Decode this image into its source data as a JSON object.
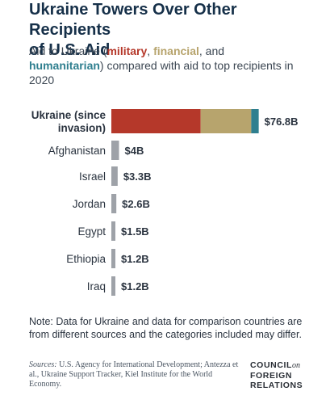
{
  "header": {
    "title_line1": "Ukraine Towers Over Other Recipients",
    "title_line2": "of U.S. Aid",
    "subtitle_pre": "Aid to Ukraine (",
    "subtitle_military": "military",
    "subtitle_sep1": ", ",
    "subtitle_financial": "financial",
    "subtitle_sep2": ", and",
    "subtitle_humanitarian": "humanitarian",
    "subtitle_post": ") compared with aid to top recipients in 2020"
  },
  "colors": {
    "military": "#b5382a",
    "financial": "#b7a46d",
    "humanitarian": "#2f7f8f",
    "other": "#9ea2a8"
  },
  "chart_data": {
    "type": "bar",
    "orientation": "horizontal",
    "unit": "B",
    "categories": [
      "Ukraine (since invasion)",
      "Afghanistan",
      "Israel",
      "Jordan",
      "Egypt",
      "Ethiopia",
      "Iraq"
    ],
    "category_lines": [
      [
        "Ukraine (since",
        "invasion)"
      ],
      [
        "Afghanistan"
      ],
      [
        "Israel"
      ],
      [
        "Jordan"
      ],
      [
        "Egypt"
      ],
      [
        "Ethiopia"
      ],
      [
        "Iraq"
      ]
    ],
    "totals": [
      76.8,
      4,
      3.3,
      2.6,
      1.5,
      1.2,
      1.2
    ],
    "value_labels": [
      "$76.8B",
      "$4B",
      "$3.3B",
      "$2.6B",
      "$1.5B",
      "$1.2B",
      "$1.2B"
    ],
    "ukraine_breakdown": [
      {
        "component": "military",
        "value": 46.6
      },
      {
        "component": "financial",
        "value": 26.4
      },
      {
        "component": "humanitarian",
        "value": 3.9
      }
    ],
    "xlim": [
      0,
      80
    ],
    "grid": false,
    "legend": "none"
  },
  "footer": {
    "note": "Note: Data for Ukraine and data for comparison countries are from different sources and the categories included may differ.",
    "sources_label": "Sources:",
    "sources_text": " U.S. Agency for International Development; Antezza et al., Ukraine Support Tracker, Kiel Institute for the World Economy.",
    "logo_line1": "COUNCIL",
    "logo_on": "on",
    "logo_line2": "FOREIGN",
    "logo_line3": "RELATIONS"
  }
}
